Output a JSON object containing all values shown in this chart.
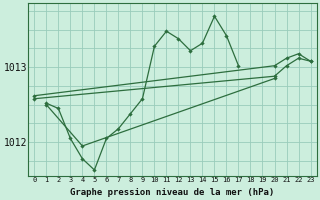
{
  "background_color": "#cceedd",
  "grid_color": "#99ccbb",
  "line_color": "#2d6e3e",
  "title": "Graphe pression niveau de la mer (hPa)",
  "ylim": [
    1011.55,
    1013.85
  ],
  "xlim": [
    -0.5,
    23.5
  ],
  "yticks": [
    1012,
    1013
  ],
  "xticks": [
    0,
    1,
    2,
    3,
    4,
    5,
    6,
    7,
    8,
    9,
    10,
    11,
    12,
    13,
    14,
    15,
    16,
    17,
    18,
    19,
    20,
    21,
    22,
    23
  ],
  "series": [
    {
      "x": [
        1,
        2,
        3,
        4,
        5,
        6,
        7,
        8,
        9,
        10,
        11,
        12,
        13,
        14,
        15,
        16,
        17
      ],
      "y": [
        1012.52,
        1012.45,
        1012.05,
        1011.78,
        1011.63,
        1012.05,
        1012.18,
        1012.38,
        1012.58,
        1013.28,
        1013.48,
        1013.38,
        1013.22,
        1013.32,
        1013.68,
        1013.42,
        1013.02
      ]
    },
    {
      "x": [
        0,
        20,
        21,
        22,
        23
      ],
      "y": [
        1012.62,
        1013.02,
        1013.12,
        1013.18,
        1013.08
      ]
    },
    {
      "x": [
        0,
        20,
        21,
        22,
        23
      ],
      "y": [
        1012.58,
        1012.88,
        1013.02,
        1013.12,
        1013.08
      ]
    },
    {
      "x": [
        1,
        4,
        20
      ],
      "y": [
        1012.5,
        1011.95,
        1012.85
      ]
    }
  ]
}
